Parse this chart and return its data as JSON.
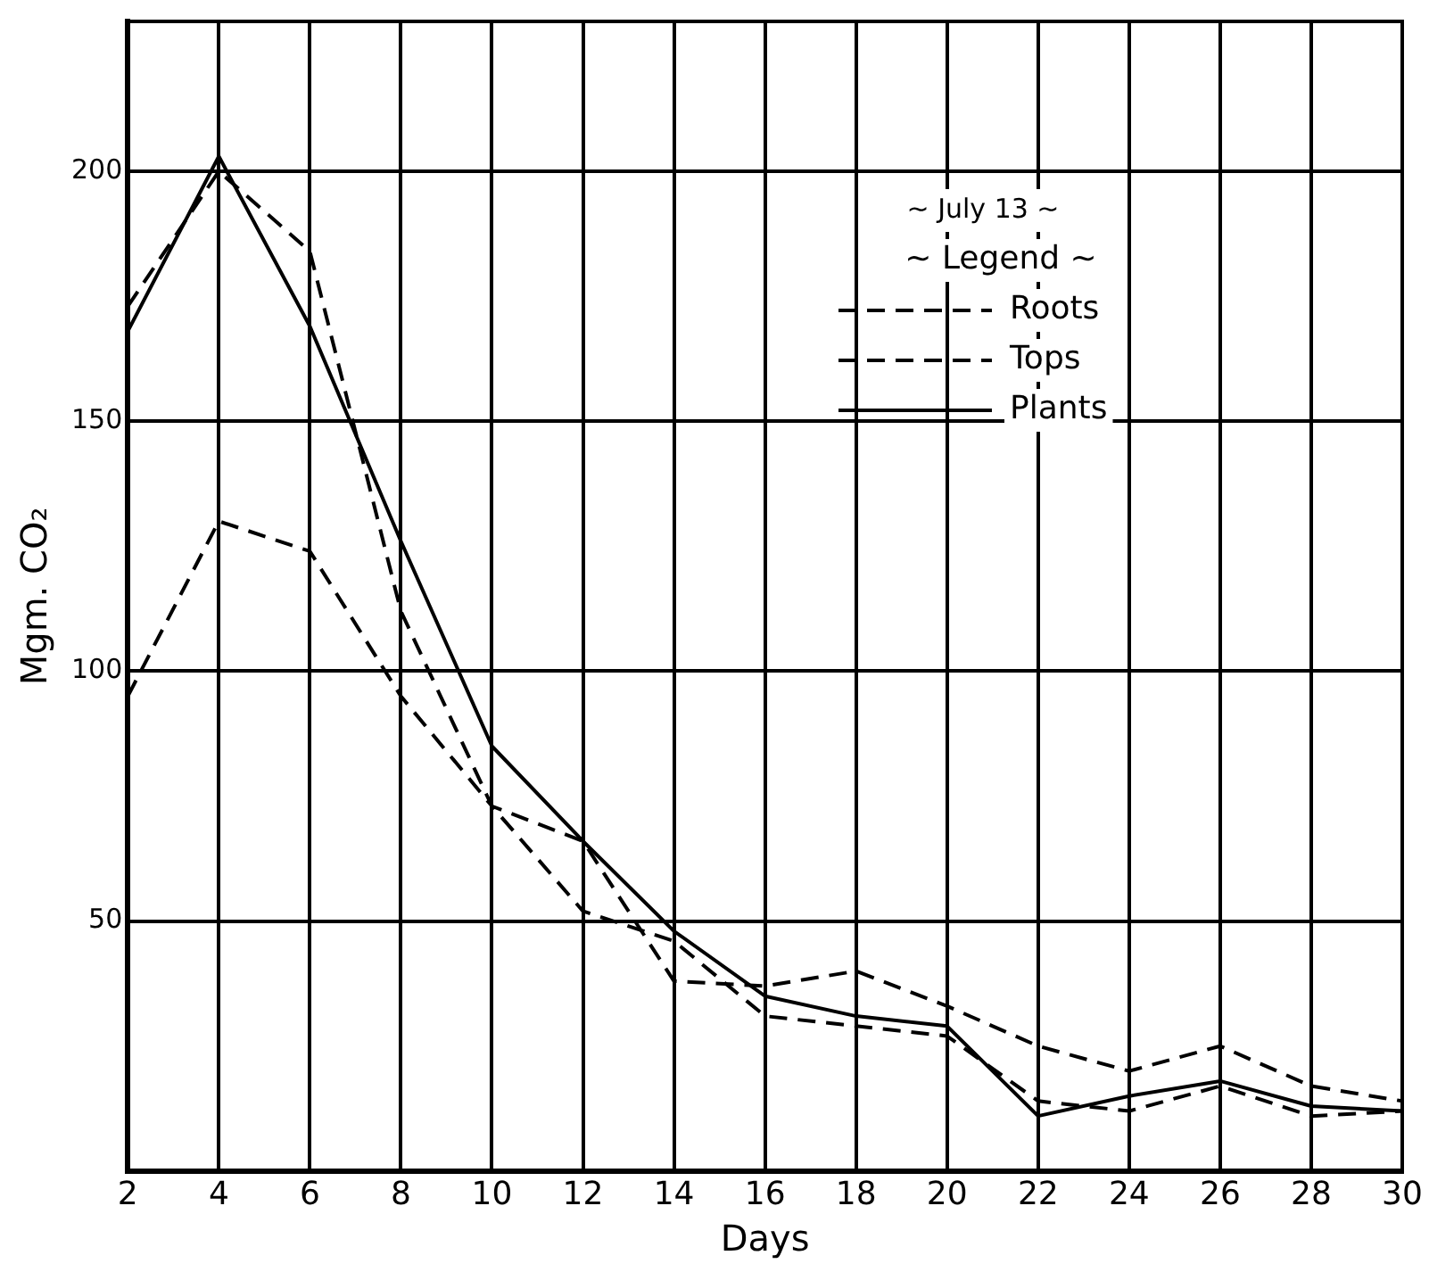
{
  "chart_data": {
    "type": "line",
    "xlabel": "Days",
    "ylabel": "Mgm. CO₂",
    "legend_title": "~ Legend ~",
    "annotations": [
      "~ July 13 ~"
    ],
    "x": [
      2,
      4,
      6,
      8,
      10,
      12,
      14,
      16,
      18,
      20,
      22,
      24,
      26,
      28,
      30
    ],
    "series": [
      {
        "name": "Roots",
        "color": "#000000",
        "line_style": "dashed",
        "values": [
          95,
          130,
          124,
          95,
          73,
          66,
          38,
          37,
          40,
          33,
          25,
          20,
          25,
          17,
          14
        ]
      },
      {
        "name": "Tops",
        "color": "#000000",
        "line_style": "dashed",
        "values": [
          173,
          200,
          184,
          112,
          73,
          52,
          46,
          31,
          29,
          27,
          14,
          12,
          17,
          11,
          12
        ]
      },
      {
        "name": "Plants",
        "color": "#000000",
        "line_style": "solid",
        "values": [
          168,
          203,
          169,
          126,
          85,
          66,
          48,
          35,
          31,
          29,
          11,
          15,
          18,
          13,
          12
        ]
      }
    ],
    "xlim": [
      2,
      30
    ],
    "xticks": [
      2,
      4,
      6,
      8,
      10,
      12,
      14,
      16,
      18,
      20,
      22,
      24,
      26,
      28,
      30
    ],
    "ylim": [
      0,
      230
    ],
    "yticks": [
      50,
      100,
      150,
      200
    ],
    "grid": true,
    "legend": "top right",
    "marker": "none"
  }
}
